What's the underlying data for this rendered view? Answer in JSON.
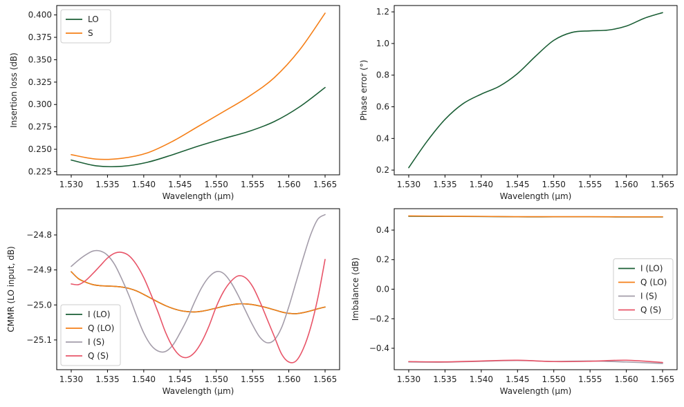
{
  "chart_data": [
    {
      "id": "insertion-loss",
      "type": "line",
      "xlabel": "Wavelength (µm)",
      "ylabel": "Insertion loss (dB)",
      "xlim": [
        1.528,
        1.567
      ],
      "ylim": [
        0.2215,
        0.4105
      ],
      "xticks": [
        1.53,
        1.535,
        1.54,
        1.545,
        1.55,
        1.555,
        1.56,
        1.565
      ],
      "xtick_labels": [
        "1.530",
        "1.535",
        "1.540",
        "1.545",
        "1.550",
        "1.555",
        "1.560",
        "1.565"
      ],
      "yticks": [
        0.225,
        0.25,
        0.275,
        0.3,
        0.325,
        0.35,
        0.375,
        0.4
      ],
      "ytick_labels": [
        "0.225",
        "0.250",
        "0.275",
        "0.300",
        "0.325",
        "0.350",
        "0.375",
        "0.400"
      ],
      "legend": "upper-left",
      "grid": false,
      "x": [
        1.53,
        1.5335,
        1.537,
        1.5405,
        1.544,
        1.5475,
        1.551,
        1.5545,
        1.558,
        1.5615,
        1.565
      ],
      "series": [
        {
          "name": "LO",
          "color": "#1a5e35",
          "values": [
            0.238,
            0.2315,
            0.231,
            0.2355,
            0.244,
            0.2535,
            0.262,
            0.27,
            0.281,
            0.2975,
            0.319
          ]
        },
        {
          "name": "S",
          "color": "#f57f17",
          "values": [
            0.244,
            0.239,
            0.24,
            0.246,
            0.259,
            0.2755,
            0.292,
            0.309,
            0.33,
            0.361,
            0.402
          ]
        }
      ]
    },
    {
      "id": "phase-error",
      "type": "line",
      "xlabel": "Wavelength (µm)",
      "ylabel": "Phase error (°)",
      "xlim": [
        1.528,
        1.567
      ],
      "ylim": [
        0.17,
        1.24
      ],
      "xticks": [
        1.53,
        1.535,
        1.54,
        1.545,
        1.55,
        1.555,
        1.56,
        1.565
      ],
      "xtick_labels": [
        "1.530",
        "1.535",
        "1.540",
        "1.545",
        "1.550",
        "1.555",
        "1.560",
        "1.565"
      ],
      "yticks": [
        0.2,
        0.4,
        0.6,
        0.8,
        1.0,
        1.2
      ],
      "ytick_labels": [
        "0.2",
        "0.4",
        "0.6",
        "0.8",
        "1.0",
        "1.2"
      ],
      "grid": false,
      "x": [
        1.53,
        1.5325,
        1.535,
        1.5375,
        1.54,
        1.5425,
        1.545,
        1.5475,
        1.55,
        1.5525,
        1.555,
        1.5575,
        1.56,
        1.5625,
        1.565
      ],
      "series": [
        {
          "name": "",
          "color": "#1a5e35",
          "values": [
            0.215,
            0.38,
            0.52,
            0.62,
            0.68,
            0.73,
            0.81,
            0.92,
            1.02,
            1.07,
            1.08,
            1.085,
            1.11,
            1.16,
            1.195
          ]
        }
      ]
    },
    {
      "id": "cmmr",
      "type": "line",
      "xlabel": "Wavelength (µm)",
      "ylabel": "CMMR (LO input, dB)",
      "xlim": [
        1.528,
        1.567
      ],
      "ylim": [
        -25.185,
        -24.725
      ],
      "xticks": [
        1.53,
        1.535,
        1.54,
        1.545,
        1.55,
        1.555,
        1.56,
        1.565
      ],
      "xtick_labels": [
        "1.530",
        "1.535",
        "1.540",
        "1.545",
        "1.550",
        "1.555",
        "1.560",
        "1.565"
      ],
      "yticks": [
        -24.8,
        -24.9,
        -25.0,
        -25.1
      ],
      "ytick_labels": [
        "−24.8",
        "−24.9",
        "−25.0",
        "−25.1"
      ],
      "legend": "lower-left",
      "grid": false,
      "x": [
        1.53,
        1.531,
        1.532,
        1.533,
        1.534,
        1.535,
        1.536,
        1.537,
        1.538,
        1.539,
        1.54,
        1.541,
        1.542,
        1.543,
        1.544,
        1.545,
        1.546,
        1.547,
        1.548,
        1.549,
        1.55,
        1.551,
        1.552,
        1.553,
        1.554,
        1.555,
        1.556,
        1.557,
        1.558,
        1.559,
        1.56,
        1.561,
        1.562,
        1.563,
        1.564,
        1.565
      ],
      "series": [
        {
          "name": "I (LO)",
          "color": "#1a5e35",
          "values": [
            -24.905,
            -24.925,
            -24.935,
            -24.942,
            -24.945,
            -24.946,
            -24.947,
            -24.949,
            -24.953,
            -24.96,
            -24.97,
            -24.981,
            -24.992,
            -25.002,
            -25.01,
            -25.016,
            -25.019,
            -25.02,
            -25.018,
            -25.014,
            -25.009,
            -25.004,
            -25.0,
            -24.997,
            -24.997,
            -24.999,
            -25.003,
            -25.008,
            -25.014,
            -25.02,
            -25.024,
            -25.025,
            -25.022,
            -25.017,
            -25.011,
            -25.006
          ]
        },
        {
          "name": "Q (LO)",
          "color": "#f57f17",
          "values": [
            -24.905,
            -24.925,
            -24.935,
            -24.942,
            -24.945,
            -24.946,
            -24.947,
            -24.949,
            -24.953,
            -24.96,
            -24.97,
            -24.981,
            -24.992,
            -25.002,
            -25.01,
            -25.016,
            -25.019,
            -25.02,
            -25.018,
            -25.014,
            -25.009,
            -25.004,
            -25.0,
            -24.997,
            -24.997,
            -24.999,
            -25.003,
            -25.008,
            -25.014,
            -25.02,
            -25.024,
            -25.025,
            -25.022,
            -25.017,
            -25.011,
            -25.006
          ]
        },
        {
          "name": "I (S)",
          "color": "#a39ca9",
          "values": [
            -24.89,
            -24.872,
            -24.857,
            -24.846,
            -24.846,
            -24.858,
            -24.885,
            -24.927,
            -24.975,
            -25.03,
            -25.08,
            -25.115,
            -25.132,
            -25.133,
            -25.115,
            -25.08,
            -25.04,
            -24.992,
            -24.95,
            -24.92,
            -24.905,
            -24.91,
            -24.935,
            -24.972,
            -25.015,
            -25.057,
            -25.092,
            -25.108,
            -25.1,
            -25.065,
            -25.005,
            -24.935,
            -24.865,
            -24.8,
            -24.755,
            -24.742
          ]
        },
        {
          "name": "Q (S)",
          "color": "#e85468",
          "values": [
            -24.94,
            -24.942,
            -24.93,
            -24.91,
            -24.888,
            -24.866,
            -24.852,
            -24.85,
            -24.86,
            -24.885,
            -24.922,
            -24.97,
            -25.022,
            -25.078,
            -25.12,
            -25.145,
            -25.15,
            -25.136,
            -25.105,
            -25.06,
            -25.005,
            -24.962,
            -24.933,
            -24.917,
            -24.922,
            -24.947,
            -24.99,
            -25.04,
            -25.09,
            -25.14,
            -25.163,
            -25.16,
            -25.125,
            -25.065,
            -24.98,
            -24.87
          ]
        }
      ]
    },
    {
      "id": "imbalance",
      "type": "line",
      "xlabel": "Wavelength (µm)",
      "ylabel": "Imbalance (dB)",
      "xlim": [
        1.528,
        1.567
      ],
      "ylim": [
        -0.545,
        0.545
      ],
      "xticks": [
        1.53,
        1.535,
        1.54,
        1.545,
        1.55,
        1.555,
        1.56,
        1.565
      ],
      "xtick_labels": [
        "1.530",
        "1.535",
        "1.540",
        "1.545",
        "1.550",
        "1.555",
        "1.560",
        "1.565"
      ],
      "yticks": [
        0.4,
        0.2,
        0.0,
        -0.2,
        -0.4
      ],
      "ytick_labels": [
        "0.4",
        "0.2",
        "0.0",
        "−0.2",
        "−0.4"
      ],
      "legend": "center-right",
      "grid": false,
      "x": [
        1.53,
        1.535,
        1.54,
        1.545,
        1.55,
        1.555,
        1.56,
        1.565
      ],
      "series": [
        {
          "name": "I (LO)",
          "color": "#1a5e35",
          "values": [
            0.494,
            0.493,
            0.492,
            0.49,
            0.49,
            0.49,
            0.489,
            0.489
          ]
        },
        {
          "name": "Q (LO)",
          "color": "#f57f17",
          "values": [
            0.496,
            0.494,
            0.493,
            0.491,
            0.491,
            0.491,
            0.49,
            0.49
          ]
        },
        {
          "name": "I (S)",
          "color": "#a39ca9",
          "values": [
            -0.493,
            -0.494,
            -0.488,
            -0.483,
            -0.489,
            -0.486,
            -0.493,
            -0.503
          ]
        },
        {
          "name": "Q (S)",
          "color": "#e85468",
          "values": [
            -0.49,
            -0.492,
            -0.486,
            -0.481,
            -0.49,
            -0.488,
            -0.481,
            -0.496
          ]
        }
      ]
    }
  ]
}
